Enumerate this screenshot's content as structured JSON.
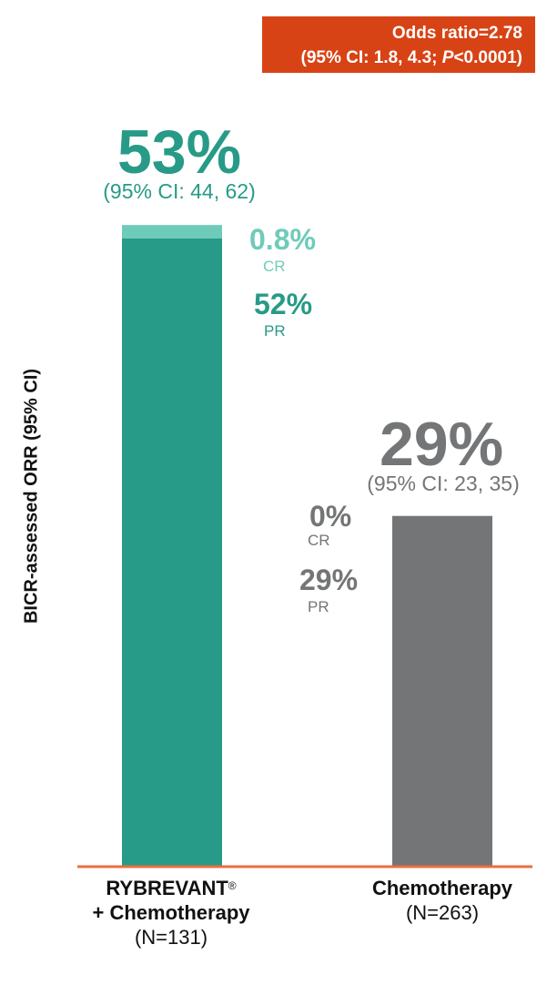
{
  "colors": {
    "treatment_cr": "#6fcbb9",
    "treatment_pr": "#279b87",
    "chemo": "#737577",
    "axis_line": "#e8703f",
    "odds_box": "#d84315"
  },
  "odds_box": {
    "line1": "Odds ratio=2.78",
    "line2_prefix": "(95% CI: 1.8, 4.3; ",
    "line2_p": "P",
    "line2_suffix": "<0.0001)"
  },
  "chart_data": {
    "type": "bar",
    "ylabel": "BICR-assessed ORR (95% CI)",
    "ylim": [
      0,
      70
    ],
    "categories": [
      "RYBREVANT® + Chemotherapy",
      "Chemotherapy"
    ],
    "series": [
      {
        "name": "PR",
        "values": [
          52,
          29
        ]
      },
      {
        "name": "CR",
        "values": [
          0.8,
          0
        ]
      }
    ],
    "totals": [
      53,
      29
    ],
    "grid": false,
    "groups": [
      {
        "label_line1": "RYBREVANT",
        "label_sup": "®",
        "label_line2": "+ Chemotherapy",
        "n_label": "(N=131)",
        "total_label": "53%",
        "ci_label": "(95% CI: 44, 62)",
        "cr_value": "0.8%",
        "cr_label": "CR",
        "pr_value": "52%",
        "pr_label": "PR"
      },
      {
        "label_line1": "Chemotherapy",
        "n_label": "(N=263)",
        "total_label": "29%",
        "ci_label": "(95% CI: 23, 35)",
        "cr_value": "0%",
        "cr_label": "CR",
        "pr_value": "29%",
        "pr_label": "PR"
      }
    ]
  }
}
